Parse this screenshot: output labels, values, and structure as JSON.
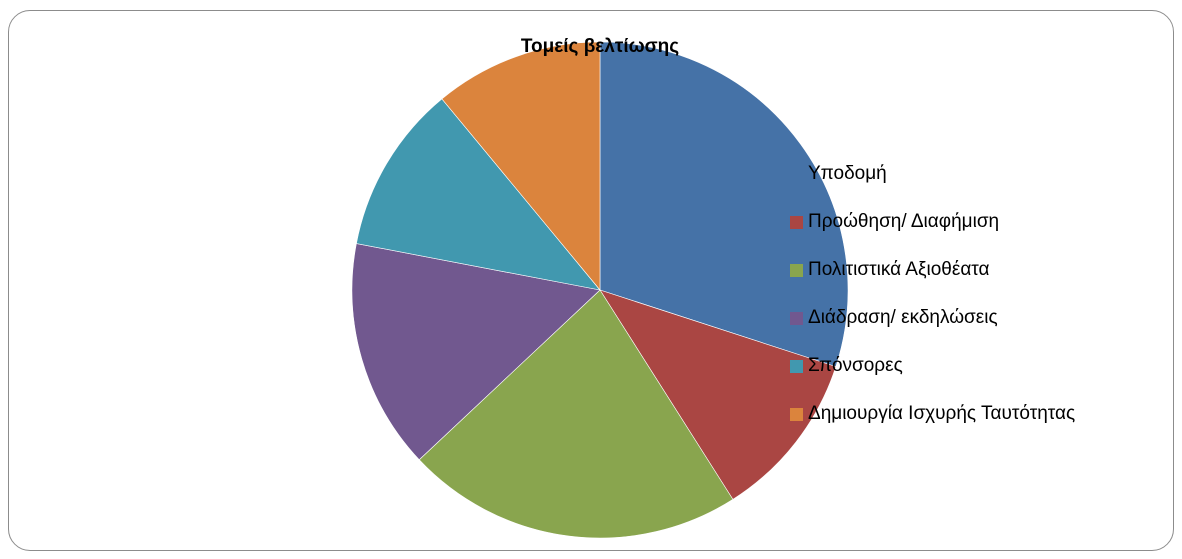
{
  "chart_data": {
    "type": "pie",
    "title": "Τομείς βελτίωσης",
    "categories": [
      "Υποδομή",
      "Προώθηση/ Διαφήμιση",
      "Πολιτιστικά Αξιοθέατα",
      "Διάδραση/ εκδηλώσεις",
      "Σπόνσορες",
      "Δημιουργία Ισχυρής Ταυτότητας"
    ],
    "values": [
      30,
      11,
      22,
      15,
      11,
      11
    ],
    "colors": [
      "#4572a7",
      "#aa4643",
      "#89a54e",
      "#71588f",
      "#4198af",
      "#db843d"
    ],
    "legend_position": "right"
  }
}
